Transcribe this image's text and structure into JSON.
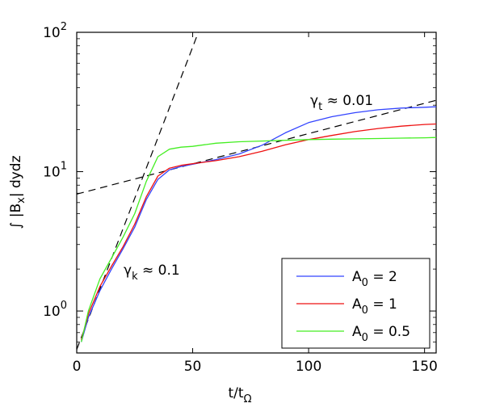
{
  "chart_data": {
    "type": "line",
    "xlabel": "t/t",
    "xlabel_sub": "Ω",
    "ylabel": "∫ |B",
    "ylabel_sub": "x",
    "ylabel_tail": "| dydz",
    "xlim": [
      0,
      155
    ],
    "ylim": [
      0.5,
      100
    ],
    "yscale": "log",
    "x_ticks": [
      0,
      50,
      100,
      150
    ],
    "x_tick_labels": [
      "0",
      "50",
      "100",
      "150"
    ],
    "y_ticks": [
      1,
      10,
      100
    ],
    "y_tick_bases": [
      "10",
      "10",
      "10"
    ],
    "y_tick_exps": [
      "0",
      "1",
      "2"
    ],
    "grid": false,
    "legend_position": "bottom-right",
    "series": [
      {
        "name": "A",
        "name_sub": "0",
        "name_tail": " = 2",
        "color": "#3344ff",
        "x": [
          2,
          5,
          10,
          15,
          20,
          25,
          30,
          35,
          40,
          45,
          50,
          60,
          70,
          80,
          90,
          100,
          110,
          120,
          130,
          140,
          150,
          155
        ],
        "y": [
          0.6,
          0.9,
          1.4,
          2.0,
          2.8,
          4.0,
          6.3,
          8.8,
          10.3,
          10.9,
          11.3,
          12.2,
          13.4,
          15.5,
          19.0,
          22.5,
          24.8,
          26.5,
          27.8,
          28.6,
          29.0,
          29.2
        ]
      },
      {
        "name": "A",
        "name_sub": "0",
        "name_tail": " = 1",
        "color": "#ee1111",
        "x": [
          2,
          5,
          10,
          15,
          20,
          25,
          30,
          35,
          40,
          45,
          50,
          60,
          70,
          80,
          90,
          100,
          110,
          120,
          130,
          140,
          150,
          155
        ],
        "y": [
          0.62,
          0.95,
          1.5,
          2.1,
          2.9,
          4.2,
          6.6,
          9.3,
          10.6,
          11.1,
          11.4,
          12.0,
          12.8,
          14.0,
          15.6,
          17.0,
          18.2,
          19.4,
          20.4,
          21.2,
          21.8,
          22.0
        ]
      },
      {
        "name": "A",
        "name_sub": "0",
        "name_tail": " = 0.5",
        "color": "#44ee22",
        "x": [
          2,
          5,
          10,
          15,
          20,
          25,
          30,
          35,
          40,
          45,
          50,
          60,
          70,
          80,
          90,
          100,
          110,
          120,
          130,
          140,
          150,
          155
        ],
        "y": [
          0.6,
          1.0,
          1.7,
          2.4,
          3.4,
          5.0,
          8.5,
          12.8,
          14.5,
          15.0,
          15.2,
          16.0,
          16.4,
          16.6,
          16.8,
          17.0,
          17.1,
          17.2,
          17.3,
          17.4,
          17.5,
          17.6
        ]
      }
    ],
    "fits": [
      {
        "label": "γ",
        "label_sub": "k",
        "label_tail": " ≈ 0.1",
        "x": [
          0,
          55
        ],
        "y": [
          0.53,
          129
        ]
      },
      {
        "label": "γ",
        "label_sub": "t",
        "label_tail": " ≈ 0.01",
        "x": [
          0,
          155
        ],
        "y": [
          6.9,
          32.5
        ]
      }
    ]
  }
}
